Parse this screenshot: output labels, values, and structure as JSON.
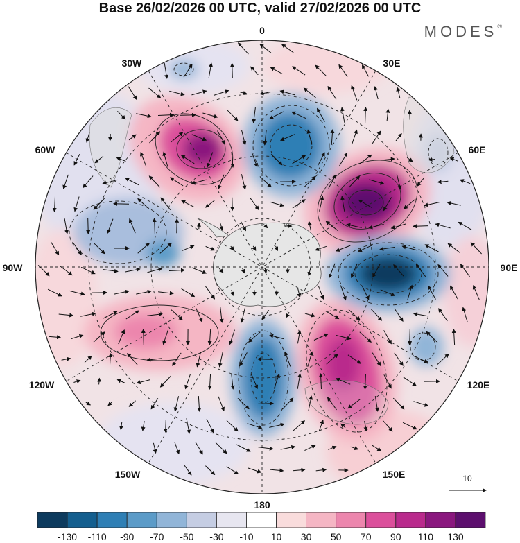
{
  "title": "Base 26/02/2026 00 UTC, valid 27/02/2026 00 UTC",
  "brand": "MODES",
  "brand_mark": "®",
  "longitude_labels": {
    "lon_0": "0",
    "lon_30e": "30E",
    "lon_60e": "60E",
    "lon_90e": "90E",
    "lon_120e": "120E",
    "lon_150e": "150E",
    "lon_180": "180",
    "lon_150w": "150W",
    "lon_120w": "120W",
    "lon_90w": "90W",
    "lon_60w": "60W",
    "lon_30w": "30W"
  },
  "reference_vector": "10",
  "colorbar": {
    "labels": [
      "-130",
      "-110",
      "-90",
      "-70",
      "-50",
      "-30",
      "-10",
      "10",
      "30",
      "50",
      "70",
      "90",
      "110",
      "130"
    ],
    "colors": [
      "#0d3b5e",
      "#145f8f",
      "#2e7fb5",
      "#5b9bc8",
      "#91b5d8",
      "#c5cde3",
      "#e7e6f0",
      "#ffffff",
      "#f9dcdc",
      "#f5b6c4",
      "#ec86ad",
      "#db4f9b",
      "#b92a8c",
      "#8a177e",
      "#5d0f6e"
    ]
  },
  "anomaly_colors": {
    "ring_light_red": "#f9dcdc",
    "ring_light_blue": "#e3e3f1",
    "land_gray": "#e4e4e4"
  }
}
